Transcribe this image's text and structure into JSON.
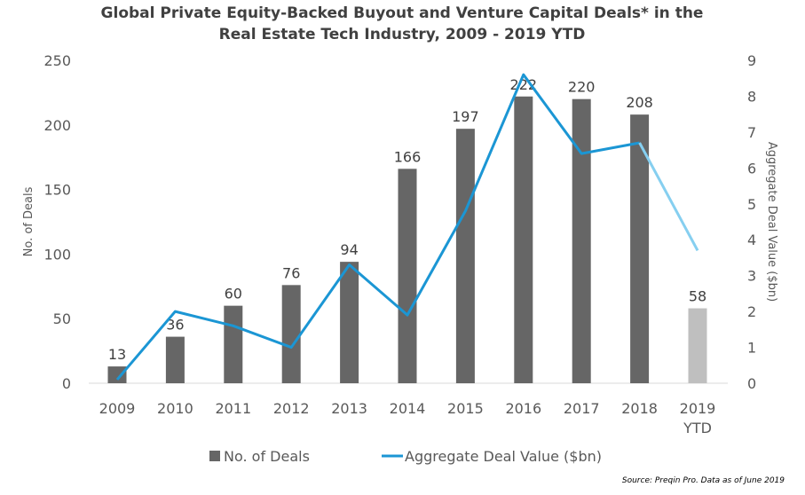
{
  "chart_data": {
    "type": "bar+line",
    "title_line1": "Global Private Equity-Backed Buyout and Venture Capital Deals* in the",
    "title_line2": "Real Estate Tech Industry, 2009 - 2019 YTD",
    "categories": [
      "2009",
      "2010",
      "2011",
      "2012",
      "2013",
      "2014",
      "2015",
      "2016",
      "2017",
      "2018",
      "2019 YTD"
    ],
    "series": [
      {
        "name": "No. of Deals",
        "type": "bar",
        "axis": "left",
        "values": [
          13,
          36,
          60,
          76,
          94,
          166,
          197,
          222,
          220,
          208,
          58
        ],
        "color": "#666666",
        "highlight_color": "#bfbfbf"
      },
      {
        "name": "Aggregate Deal Value ($bn)",
        "type": "line",
        "axis": "right",
        "values": [
          0.1,
          2.0,
          1.6,
          1.0,
          3.3,
          1.9,
          4.8,
          8.6,
          6.4,
          6.7,
          3.7
        ],
        "color": "#1b96d4",
        "highlight_color": "#86cff0"
      }
    ],
    "ylabel_left": "No. of Deals",
    "ylabel_right": "Aggregate Deal Value ($bn)",
    "ylim_left": [
      0,
      250
    ],
    "yticks_left": [
      0,
      50,
      100,
      150,
      200,
      250
    ],
    "ylim_right": [
      0,
      9
    ],
    "yticks_right": [
      0,
      1,
      2,
      3,
      4,
      5,
      6,
      7,
      8,
      9
    ],
    "grid": false,
    "legend": "bottom",
    "source": "Source: Preqin Pro. Data as of June 2019"
  }
}
